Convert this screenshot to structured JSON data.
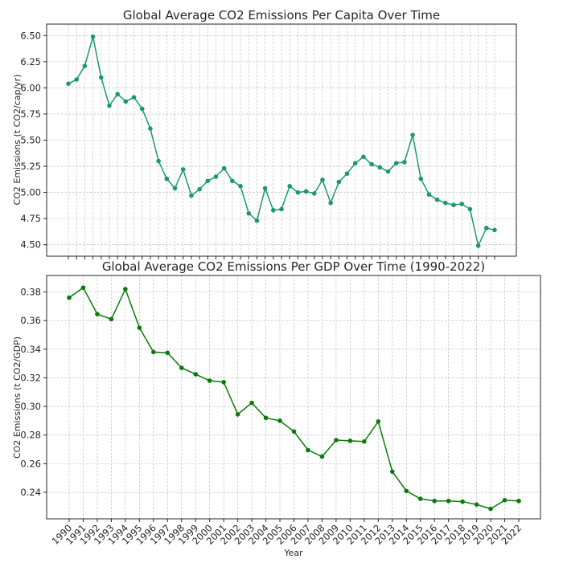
{
  "chart_data": [
    {
      "type": "line",
      "title": "Global Average CO2 Emissions Per Capita Over Time",
      "xlabel": "",
      "ylabel": "CO2 Emissions (t CO2/cap/yr)",
      "yticks": [
        "4.50",
        "4.75",
        "5.00",
        "5.25",
        "5.50",
        "5.75",
        "6.00",
        "6.25",
        "6.50"
      ],
      "ylim": [
        4.39,
        6.61
      ],
      "color": "#1a9970",
      "grid": true,
      "series": [
        {
          "values": [
            6.04,
            6.08,
            6.21,
            6.49,
            6.1,
            5.83,
            5.94,
            5.87,
            5.91,
            5.8,
            5.61,
            5.3,
            5.13,
            5.04,
            5.22,
            4.97,
            5.03,
            5.11,
            5.15,
            5.23,
            5.11,
            5.06,
            4.8,
            4.73,
            5.04,
            4.83,
            4.84,
            5.06,
            5.0,
            5.01,
            4.99,
            5.12,
            4.9,
            5.1,
            5.18,
            5.28,
            5.34,
            5.27,
            5.24,
            5.2,
            5.28,
            5.29,
            5.55,
            5.13,
            4.98,
            4.93,
            4.9,
            4.88,
            4.89,
            4.84,
            4.49,
            4.66,
            4.64
          ]
        }
      ]
    },
    {
      "type": "line",
      "title": "Global Average CO2 Emissions Per GDP Over Time (1990-2022)",
      "xlabel": "Year",
      "ylabel": "CO2 Emissions (t CO2/GDP)",
      "categories": [
        "1990",
        "1991",
        "1992",
        "1993",
        "1994",
        "1995",
        "1996",
        "1997",
        "1998",
        "1999",
        "2000",
        "2001",
        "2002",
        "2003",
        "2004",
        "2005",
        "2006",
        "2007",
        "2008",
        "2009",
        "2010",
        "2011",
        "2012",
        "2013",
        "2014",
        "2015",
        "2016",
        "2017",
        "2018",
        "2019",
        "2020",
        "2021",
        "2022"
      ],
      "yticks": [
        "0.24",
        "0.26",
        "0.28",
        "0.30",
        "0.32",
        "0.34",
        "0.36",
        "0.38"
      ],
      "ylim": [
        0.2215,
        0.3915
      ],
      "color": "#0a7a0a",
      "grid": true,
      "series": [
        {
          "values": [
            0.376,
            0.383,
            0.3645,
            0.361,
            0.382,
            0.355,
            0.338,
            0.3375,
            0.327,
            0.3225,
            0.318,
            0.317,
            0.2945,
            0.3025,
            0.292,
            0.29,
            0.2825,
            0.2695,
            0.265,
            0.2765,
            0.276,
            0.2755,
            0.2895,
            0.2545,
            0.241,
            0.2355,
            0.234,
            0.234,
            0.2335,
            0.2315,
            0.2285,
            0.2345,
            0.234
          ]
        }
      ]
    }
  ]
}
